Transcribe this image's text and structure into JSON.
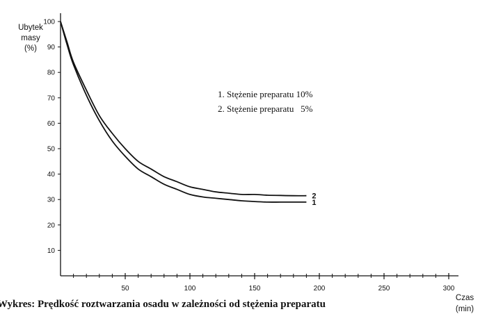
{
  "chart_data": {
    "type": "line",
    "title": "Wykres: Prędkość roztwarzania osadu w zależności od stężenia preparatu",
    "ylabel_lines": [
      "Ubytek",
      "masy",
      "(%)"
    ],
    "xlabel_lines": [
      "Czas",
      "(min)"
    ],
    "xlim": [
      0,
      300
    ],
    "ylim": [
      0,
      100
    ],
    "x_ticks": [
      50,
      100,
      150,
      200,
      250,
      300
    ],
    "y_ticks": [
      10,
      20,
      30,
      40,
      50,
      60,
      70,
      80,
      90,
      100
    ],
    "grid": false,
    "legend_position": "center-right",
    "legend": [
      "1. Stężenie preparatu 10%",
      "2. Stężenie preparatu   5%"
    ],
    "series": [
      {
        "name": "1",
        "x": [
          0,
          5,
          10,
          20,
          30,
          40,
          50,
          60,
          70,
          80,
          90,
          100,
          110,
          120,
          130,
          140,
          150,
          160,
          170,
          180,
          190
        ],
        "values": [
          100,
          91,
          83,
          71,
          61,
          53,
          47,
          42,
          39,
          36,
          34,
          32,
          31,
          30.5,
          30,
          29.5,
          29.2,
          29,
          29,
          29,
          29
        ]
      },
      {
        "name": "2",
        "x": [
          0,
          5,
          10,
          20,
          30,
          40,
          50,
          60,
          70,
          80,
          90,
          100,
          110,
          120,
          130,
          140,
          150,
          160,
          170,
          180,
          190
        ],
        "values": [
          100,
          92,
          84,
          73,
          63,
          56,
          50,
          45,
          42,
          39,
          37,
          35,
          34,
          33,
          32.5,
          32,
          32,
          31.7,
          31.6,
          31.5,
          31.5
        ]
      }
    ]
  }
}
